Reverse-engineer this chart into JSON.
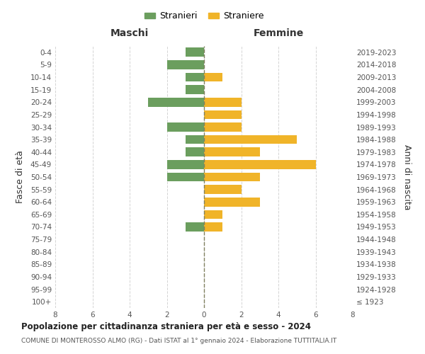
{
  "age_groups": [
    "100+",
    "95-99",
    "90-94",
    "85-89",
    "80-84",
    "75-79",
    "70-74",
    "65-69",
    "60-64",
    "55-59",
    "50-54",
    "45-49",
    "40-44",
    "35-39",
    "30-34",
    "25-29",
    "20-24",
    "15-19",
    "10-14",
    "5-9",
    "0-4"
  ],
  "birth_years": [
    "≤ 1923",
    "1924-1928",
    "1929-1933",
    "1934-1938",
    "1939-1943",
    "1944-1948",
    "1949-1953",
    "1954-1958",
    "1959-1963",
    "1964-1968",
    "1969-1973",
    "1974-1978",
    "1979-1983",
    "1984-1988",
    "1989-1993",
    "1994-1998",
    "1999-2003",
    "2004-2008",
    "2009-2013",
    "2014-2018",
    "2019-2023"
  ],
  "males": [
    0,
    0,
    0,
    0,
    0,
    0,
    1,
    0,
    0,
    0,
    2,
    2,
    1,
    1,
    2,
    0,
    3,
    1,
    1,
    2,
    1
  ],
  "females": [
    0,
    0,
    0,
    0,
    0,
    0,
    1,
    1,
    3,
    2,
    3,
    6,
    3,
    5,
    2,
    2,
    2,
    0,
    1,
    0,
    0
  ],
  "male_color": "#6b9e5e",
  "female_color": "#f0b429",
  "xlim": 8,
  "title": "Popolazione per cittadinanza straniera per età e sesso - 2024",
  "subtitle": "COMUNE DI MONTEROSSO ALMO (RG) - Dati ISTAT al 1° gennaio 2024 - Elaborazione TUTTITALIA.IT",
  "legend_male": "Stranieri",
  "legend_female": "Straniere",
  "ylabel_left": "Fasce di età",
  "ylabel_right": "Anni di nascita",
  "header_left": "Maschi",
  "header_right": "Femmine",
  "bg_color": "#ffffff"
}
